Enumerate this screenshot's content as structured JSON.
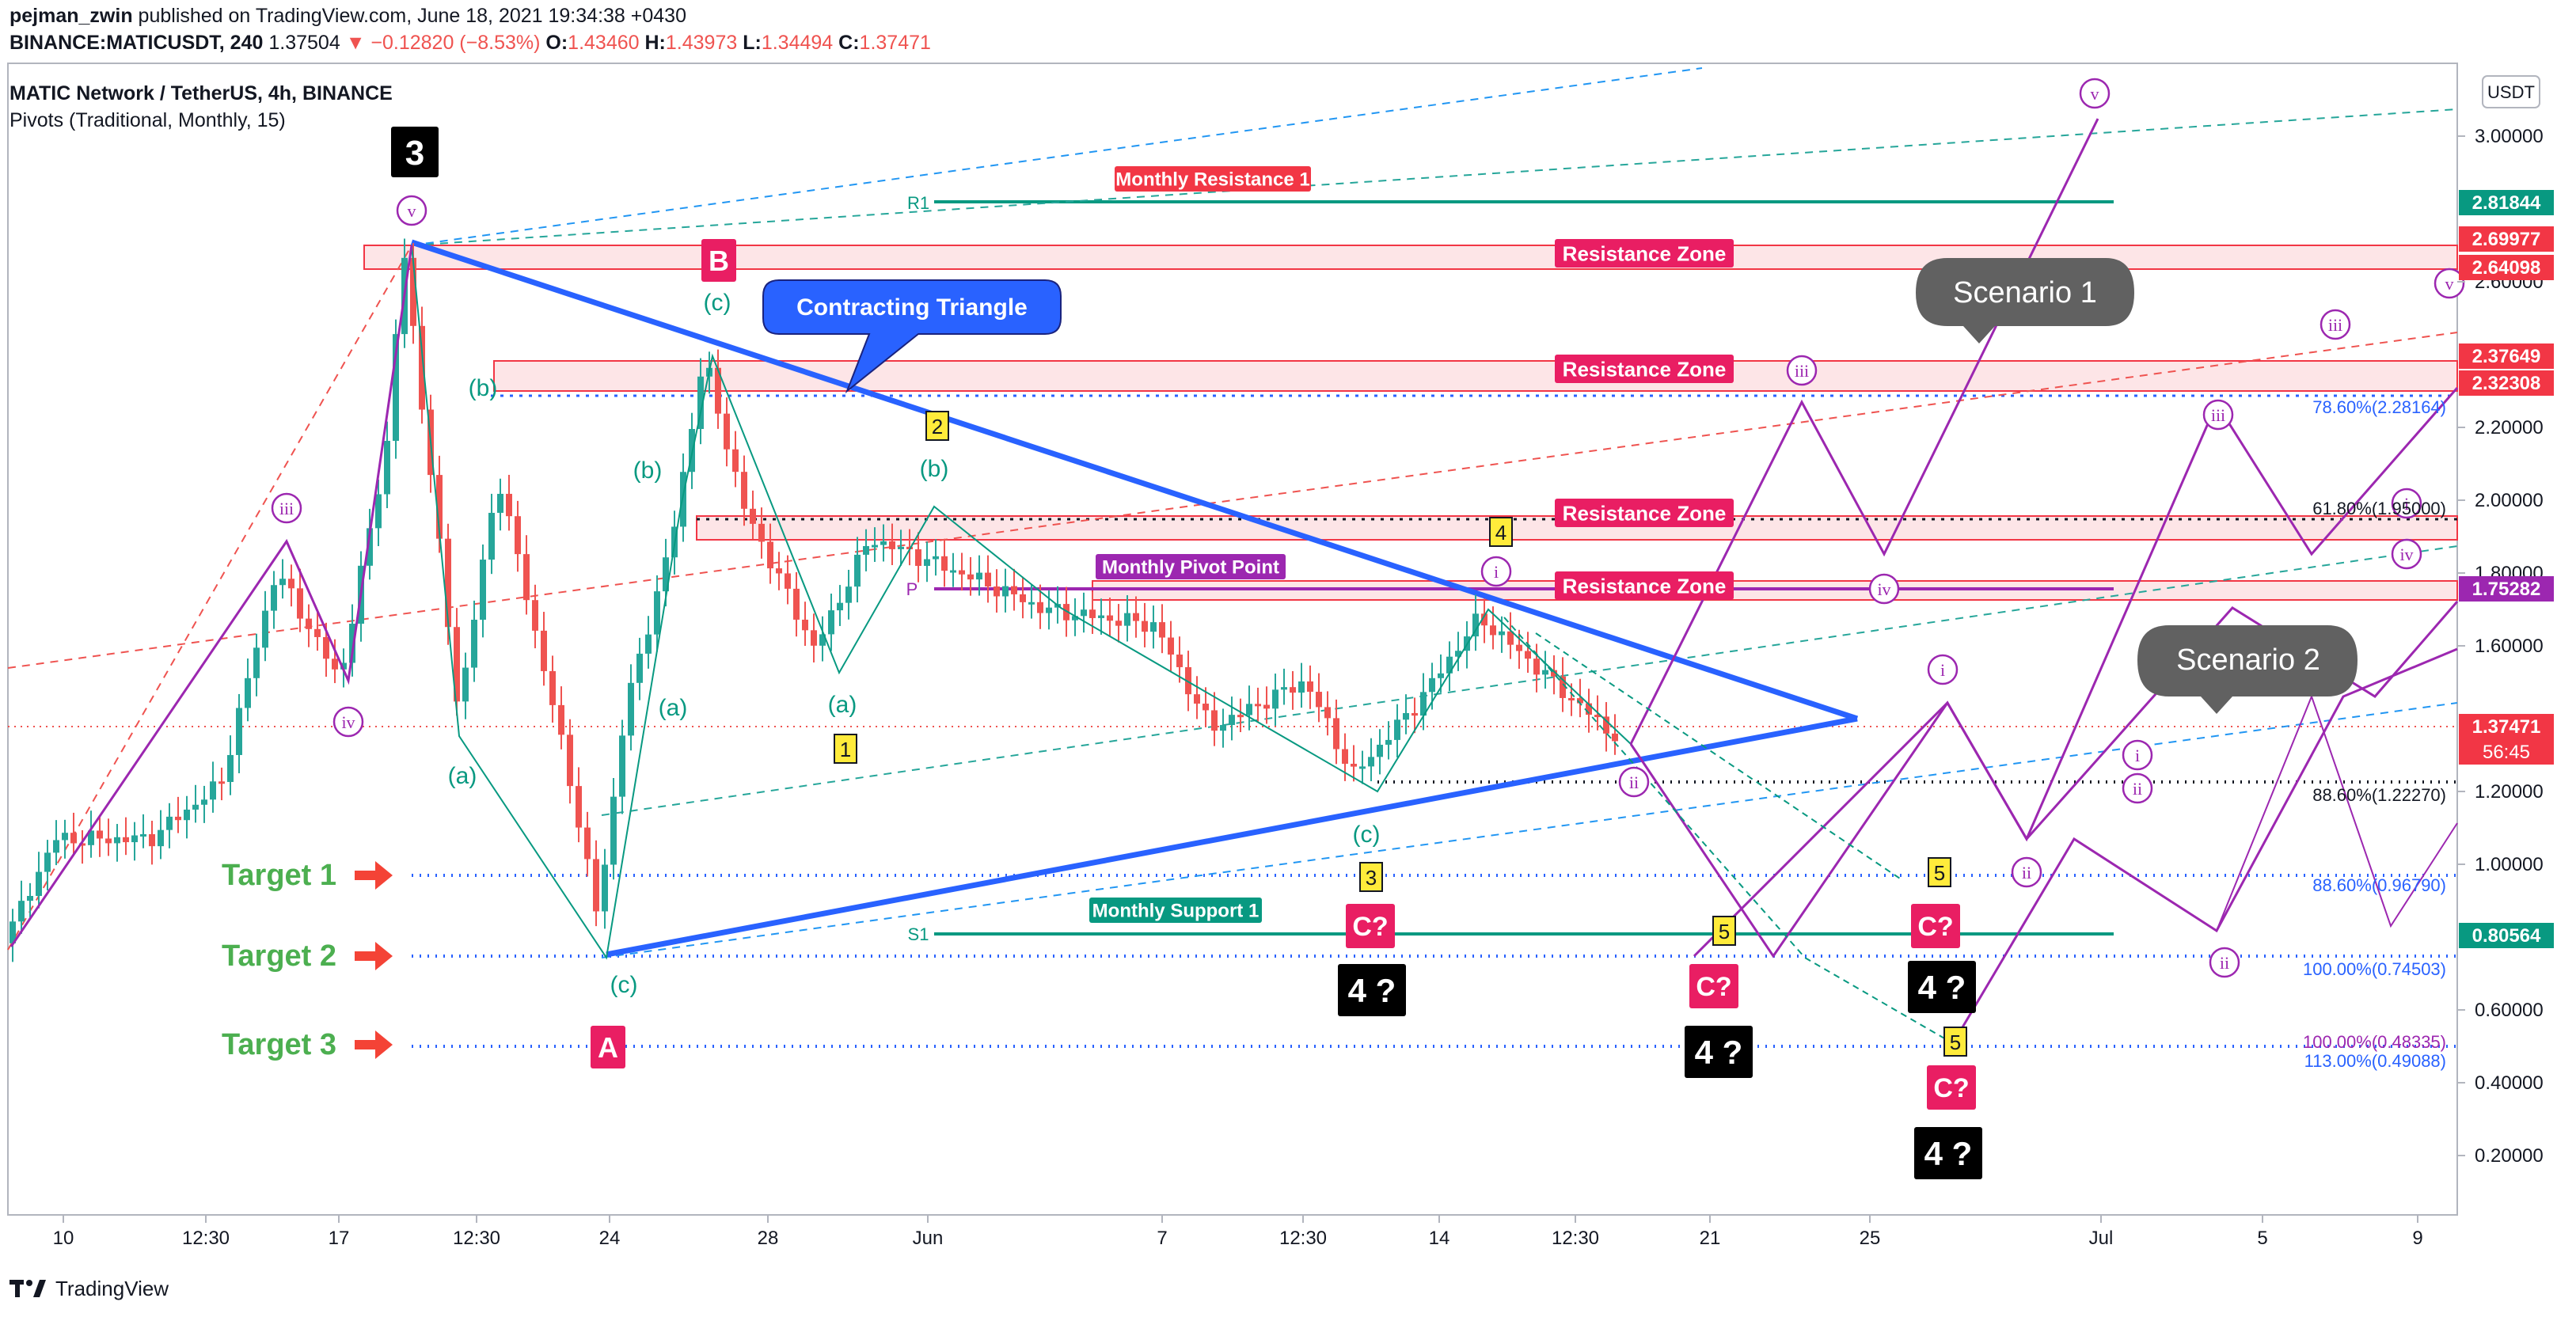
{
  "header": {
    "author": "pejman_zwin",
    "published": "published on TradingView.com, June 18, 2021 19:34:38 +0430",
    "symbol": "BINANCE:MATICUSDT, 240",
    "last": "1.37504",
    "change": "▼ −0.12820 (−8.53%)",
    "o_label": "O:",
    "o_value": "1.43460",
    "h_label": "H:",
    "h_value": "1.43973",
    "l_label": "L:",
    "l_value": "1.34494",
    "c_label": "C:",
    "c_value": "1.37471",
    "title": "MATIC Network / TetherUS, 4h, BINANCE",
    "indicator": "Pivots (Traditional, Monthly, 15)"
  },
  "footer": {
    "brand": "TradingView"
  },
  "colors": {
    "up": "#26a69a",
    "down": "#ef5350",
    "triangle": "#2962ff",
    "wave": "#9c27b0",
    "teal": "#089981",
    "zone": "#e91e63",
    "target": "#4caf50"
  },
  "chart_data": {
    "type": "candlestick",
    "x_ticks": [
      "10",
      "12:30",
      "17",
      "12:30",
      "24",
      "28",
      "Jun",
      "7",
      "12:30",
      "14",
      "12:30",
      "21",
      "25",
      "Jul",
      "5",
      "9"
    ],
    "y_axis": {
      "currency": "USDT",
      "ticks": [
        "3.00000",
        "2.60000",
        "2.20000",
        "2.00000",
        "1.80000",
        "1.60000",
        "1.20000",
        "1.00000",
        "0.60000",
        "0.40000",
        "0.20000"
      ]
    },
    "price_labels": [
      "2.81844",
      "2.69977",
      "2.64098",
      "2.37649",
      "2.32308",
      "1.75282",
      "1.37471",
      "0.80564"
    ],
    "countdown": "56:45",
    "resistance_zones": [
      "Resistance Zone",
      "Resistance Zone",
      "Resistance Zone",
      "Resistance Zone"
    ],
    "pivot_labels": {
      "r1": "R1",
      "p": "P",
      "s1": "S1",
      "monthly_resistance": "Monthly Resistance 1",
      "monthly_pivot": "Monthly Pivot Point",
      "monthly_support": "Monthly Support 1"
    },
    "targets": [
      "Target 1",
      "Target 2",
      "Target 3"
    ],
    "fib_labels": [
      "78.60%(2.28164)",
      "61.80%(1.95000)",
      "88.60%(1.22270)",
      "88.60%(0.96790)",
      "100.00%(0.74503)",
      "100.00%(0.48335)",
      "113.00%(0.49088)"
    ],
    "callout": "Contracting Triangle",
    "scenarios": [
      "Scenario 1",
      "Scenario 2"
    ],
    "big_labels": {
      "three": "3",
      "b": "B",
      "a": "A",
      "four": "4 ?",
      "c_q": "C?"
    },
    "yellow_labels": [
      "2",
      "4",
      "1",
      "3",
      "5",
      "5",
      "5"
    ],
    "teal_labels": [
      "(c)",
      "(b)",
      "(a)",
      "(b)",
      "(a)",
      "(b)",
      "(a)",
      "(c)",
      "(c)"
    ],
    "purple_labels": [
      "v",
      "iii",
      "iv",
      "iii",
      "iv",
      "i",
      "ii",
      "i",
      "ii",
      "iii",
      "iv",
      "v",
      "iii",
      "iv",
      "v",
      "ii",
      "i",
      "ii",
      "i",
      "iv"
    ]
  }
}
